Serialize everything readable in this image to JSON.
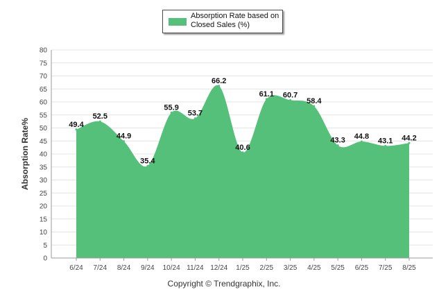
{
  "legend": {
    "label": "Absorption Rate based on Closed Sales (%)"
  },
  "footer": {
    "text": "Copyright © Trendgraphix, Inc."
  },
  "colors": {
    "area": "#55c07a",
    "grid": "#e4e4e4",
    "axis": "#9a9a9a"
  },
  "chart_data": {
    "type": "area",
    "title": "",
    "xlabel": "",
    "ylabel": "Absorption Rate%",
    "categories": [
      "6/24",
      "7/24",
      "8/24",
      "9/24",
      "10/24",
      "11/24",
      "12/24",
      "1/25",
      "2/25",
      "3/25",
      "4/25",
      "5/25",
      "6/25",
      "7/25",
      "8/25"
    ],
    "series": [
      {
        "name": "Absorption Rate based on Closed Sales (%)",
        "values": [
          49.4,
          52.5,
          44.9,
          35.4,
          55.9,
          53.7,
          66.2,
          40.6,
          61.1,
          60.7,
          58.4,
          43.3,
          44.8,
          43.1,
          44.2
        ]
      }
    ],
    "data_labels": [
      "49.4",
      "52.5",
      "44.9",
      "35.4",
      "55.9",
      "53.7",
      "66.2",
      "40.6",
      "61.1",
      "60.7",
      "58.4",
      "43.3",
      "44.8",
      "43.1",
      "44.2"
    ],
    "ylim": [
      0,
      80
    ],
    "yticks": [
      "0",
      "5",
      "10",
      "15",
      "20",
      "25",
      "30",
      "35",
      "40",
      "45",
      "50",
      "55",
      "60",
      "65",
      "70",
      "75",
      "80"
    ],
    "grid": true,
    "legend_position": "top-center"
  }
}
